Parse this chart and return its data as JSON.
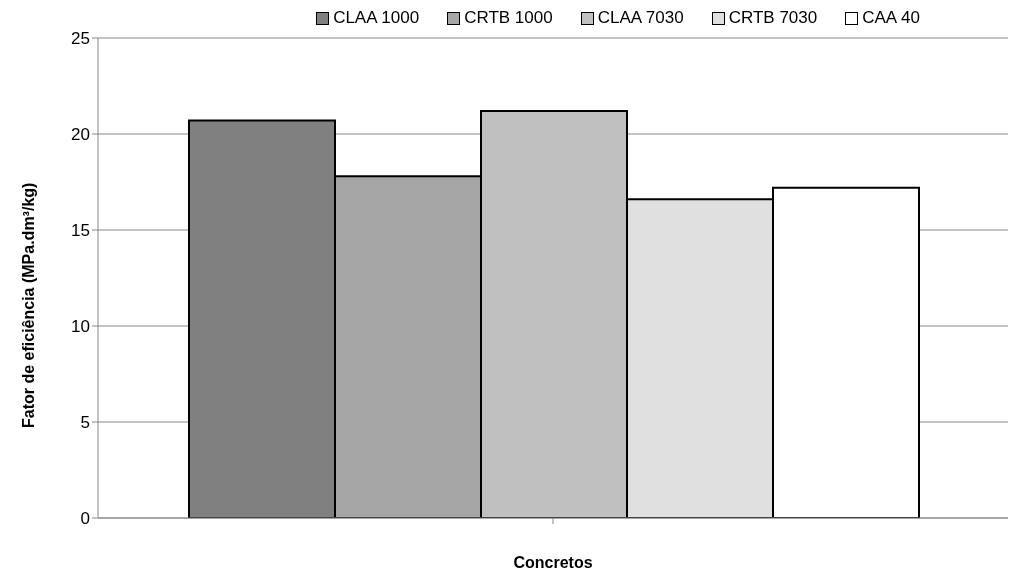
{
  "chart_data": {
    "type": "bar",
    "xlabel": "Concretos",
    "ylabel": "Fator de eficiência (MPa.dm³/kg)",
    "categories": [
      null
    ],
    "series": [
      {
        "name": "CLAA 1000",
        "color": "#808080",
        "values": [
          20.7
        ]
      },
      {
        "name": "CRTB 1000",
        "color": "#a6a6a6",
        "values": [
          17.8
        ]
      },
      {
        "name": "CLAA 7030",
        "color": "#c0c0c0",
        "values": [
          21.2
        ]
      },
      {
        "name": "CRTB 7030",
        "color": "#e0e0e0",
        "values": [
          16.6
        ]
      },
      {
        "name": "CAA 40",
        "color": "#ffffff",
        "values": [
          17.2
        ]
      }
    ],
    "ylim": [
      0,
      25
    ],
    "yticks": [
      0,
      5,
      10,
      15,
      20,
      25
    ],
    "grid": "y",
    "legend": "top"
  }
}
